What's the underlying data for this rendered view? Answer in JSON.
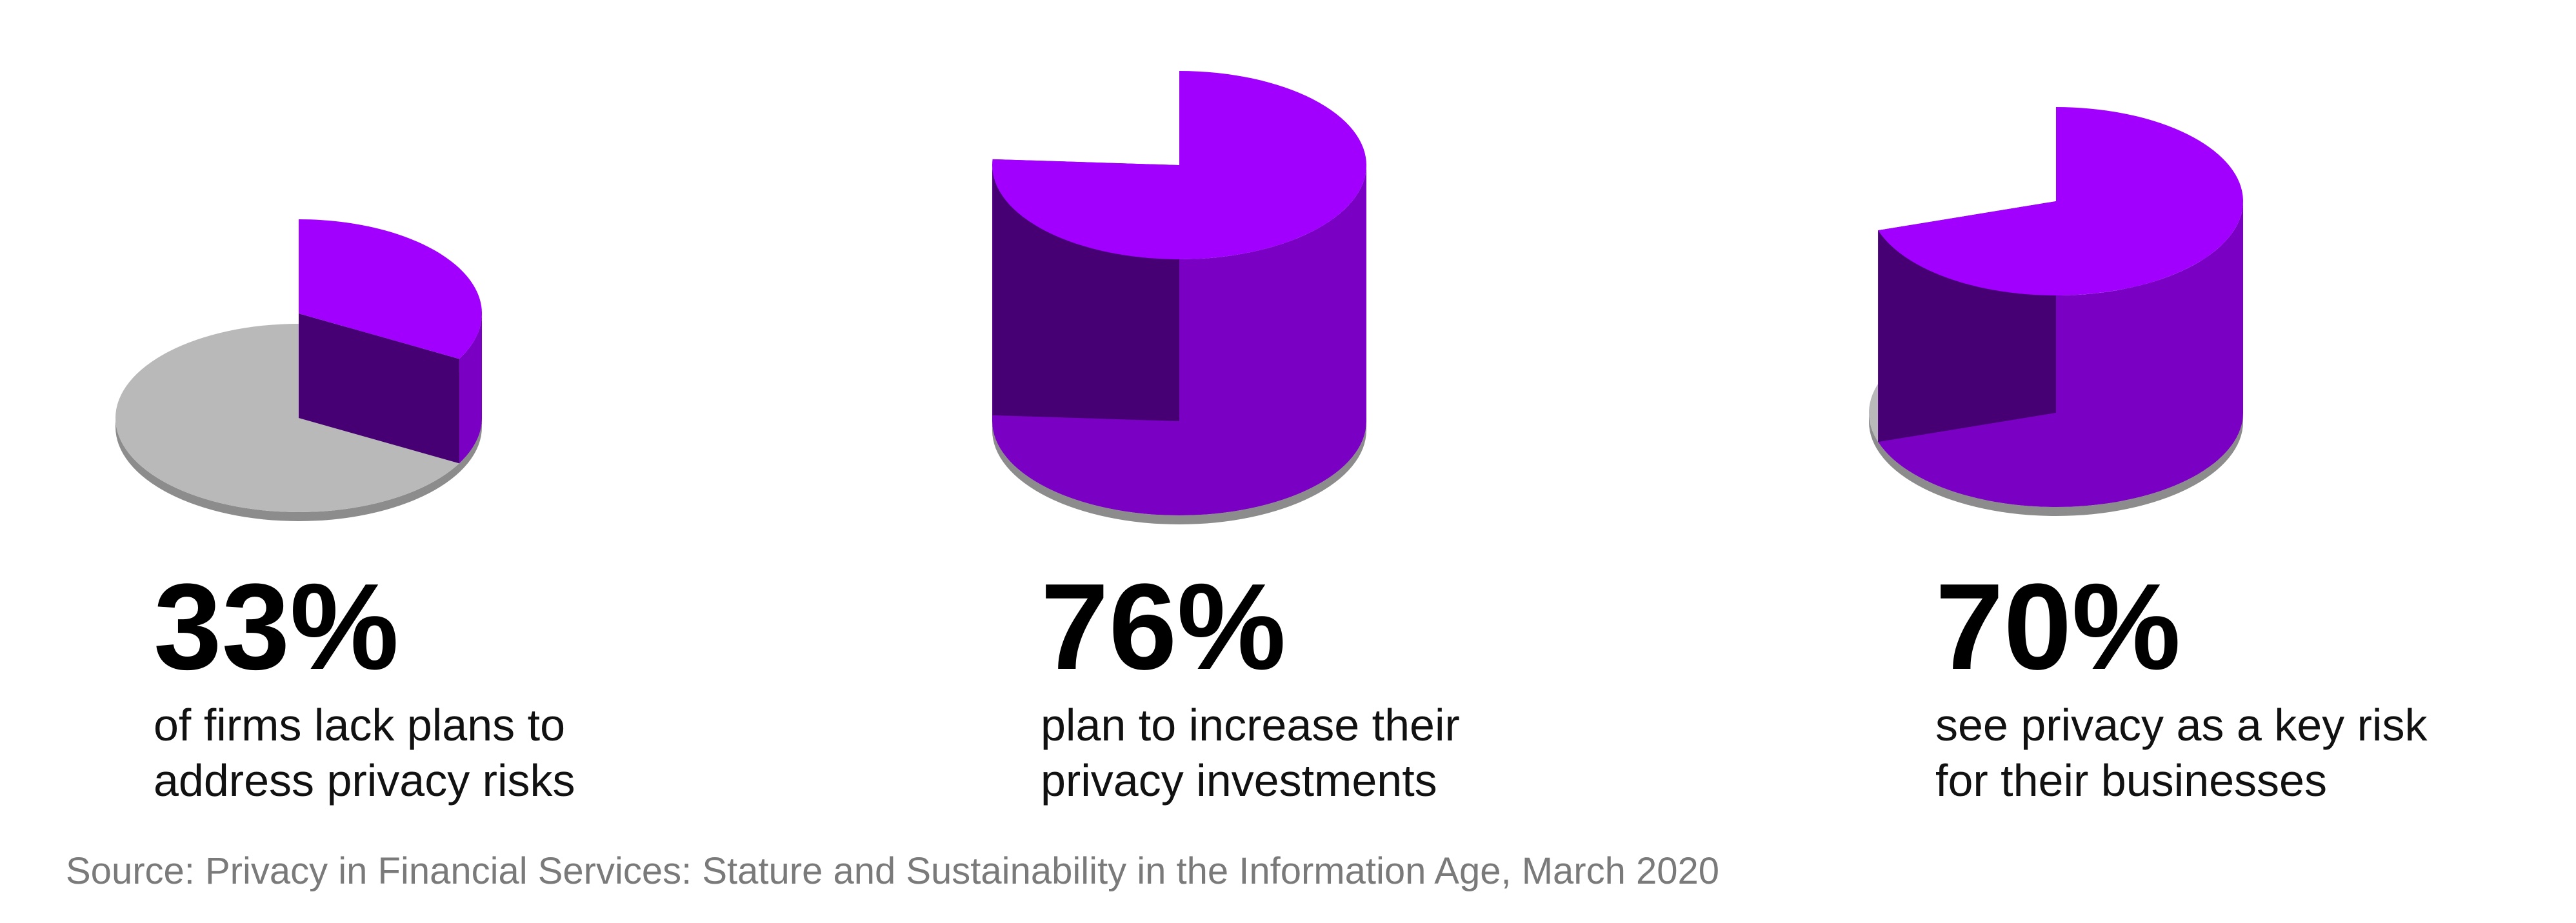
{
  "chart_data": [
    {
      "type": "pie",
      "values": [
        33
      ],
      "value_labels": [
        "33%"
      ],
      "caption_lines": [
        "of firms lack plans to",
        "address privacy risks"
      ],
      "color": "#a100ff",
      "side_color": "#7a00c4",
      "wall_color": "#460073",
      "rest_color": "#b9b9b9"
    },
    {
      "type": "pie",
      "values": [
        76
      ],
      "value_labels": [
        "76%"
      ],
      "caption_lines": [
        "plan to increase their",
        "privacy investments"
      ],
      "color": "#a100ff",
      "side_color": "#7a00c4",
      "wall_color": "#460073",
      "rest_color": "#b9b9b9"
    },
    {
      "type": "pie",
      "values": [
        70
      ],
      "value_labels": [
        "70%"
      ],
      "caption_lines": [
        "see privacy as a key risk",
        "for their businesses"
      ],
      "color": "#a100ff",
      "side_color": "#7a00c4",
      "wall_color": "#460073",
      "rest_color": "#b9b9b9"
    }
  ],
  "source": "Source: Privacy in Financial Services: Stature and Sustainability in the Information Age, March 2020"
}
